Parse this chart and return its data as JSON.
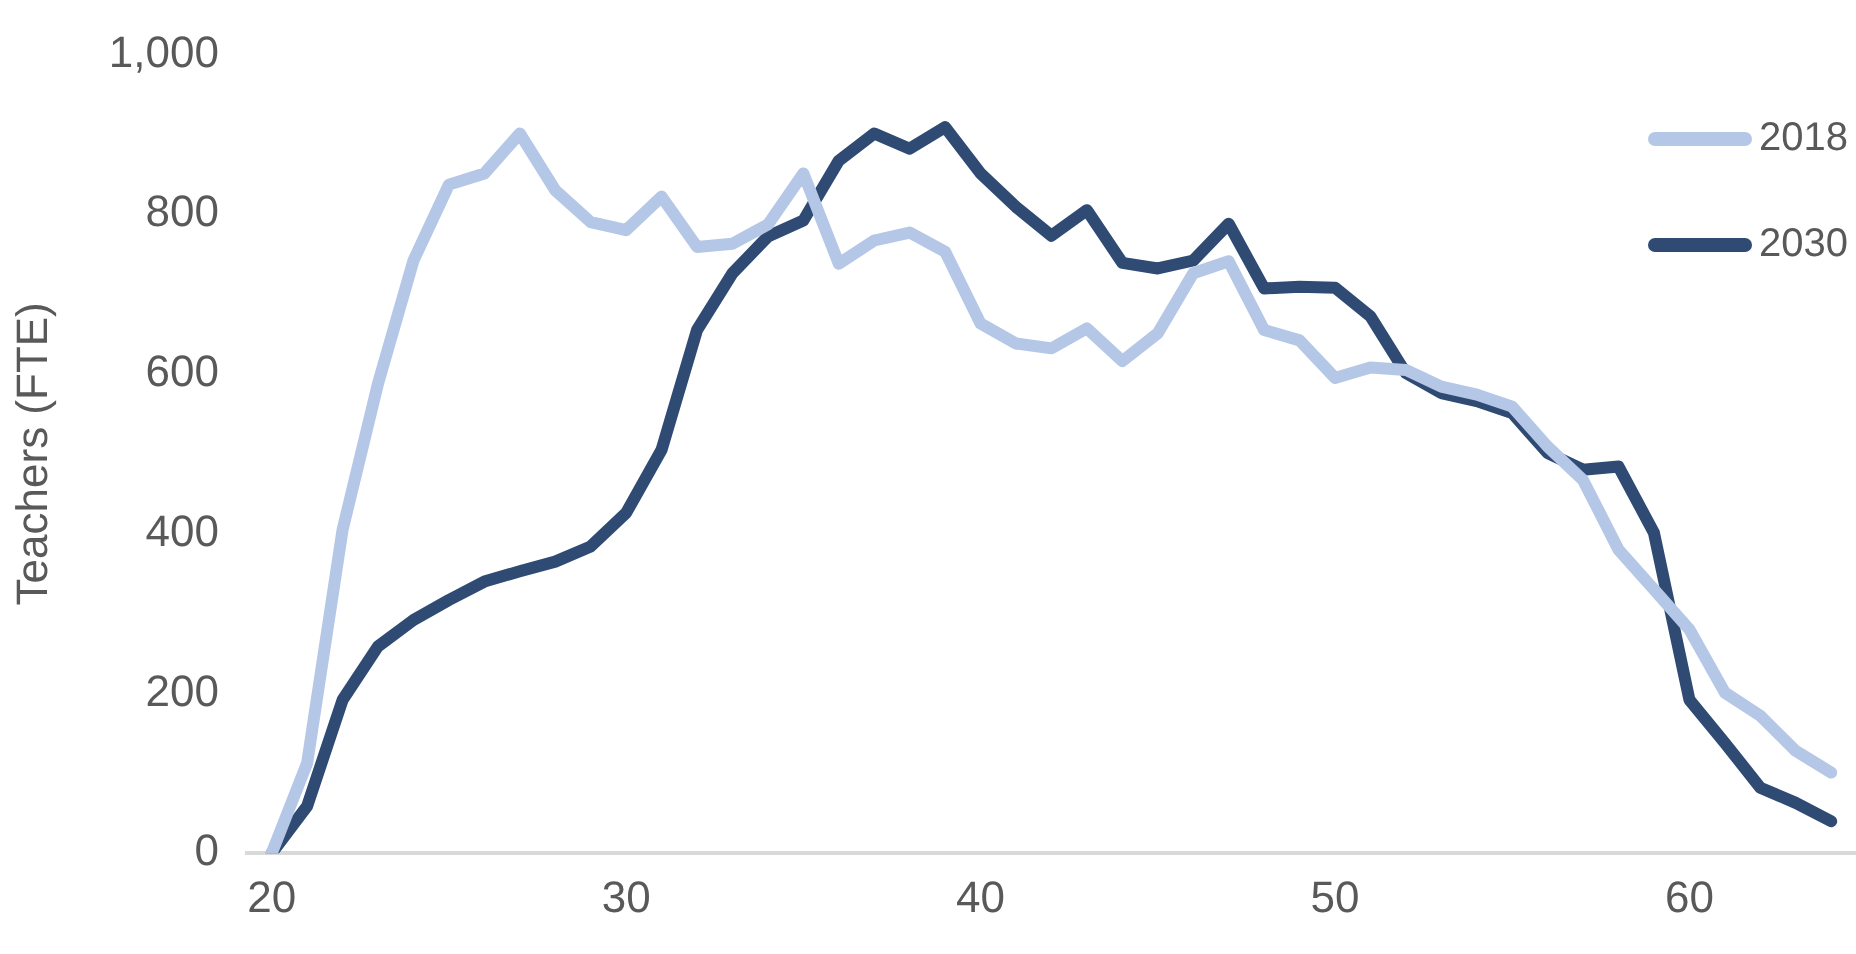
{
  "chart_data": {
    "type": "line",
    "ylabel": "Teachers (FTE)",
    "x": [
      20,
      21,
      22,
      23,
      24,
      25,
      26,
      27,
      28,
      29,
      30,
      31,
      32,
      33,
      34,
      35,
      36,
      37,
      38,
      39,
      40,
      41,
      42,
      43,
      44,
      45,
      46,
      47,
      48,
      49,
      50,
      51,
      52,
      53,
      54,
      55,
      56,
      57,
      58,
      59,
      60,
      61,
      62,
      63,
      64
    ],
    "series": [
      {
        "name": "2018",
        "color": "#b4c7e7",
        "values": [
          0,
          113,
          405,
          588,
          742,
          837,
          851,
          901,
          830,
          790,
          780,
          822,
          759,
          763,
          787,
          851,
          738,
          767,
          777,
          753,
          663,
          638,
          632,
          657,
          616,
          651,
          726,
          741,
          655,
          642,
          595,
          608,
          605,
          584,
          574,
          559,
          509,
          467,
          380,
          330,
          280,
          201,
          172,
          128,
          101
        ]
      },
      {
        "name": "2030",
        "color": "#2f4b73",
        "values": [
          0,
          59,
          192,
          259,
          292,
          317,
          340,
          353,
          365,
          384,
          426,
          505,
          655,
          726,
          772,
          792,
          867,
          901,
          882,
          909,
          851,
          809,
          773,
          805,
          739,
          732,
          742,
          788,
          707,
          709,
          708,
          672,
          601,
          576,
          566,
          551,
          501,
          480,
          484,
          401,
          192,
          138,
          82,
          63,
          40
        ]
      }
    ],
    "xlim": [
      19.3,
      64.7
    ],
    "xticks": [
      20,
      30,
      40,
      50,
      60
    ],
    "ylim": [
      0,
      1000
    ],
    "yticks": [
      0,
      200,
      400,
      600,
      800,
      {
        "value": 1000,
        "label": "1,000"
      }
    ],
    "grid": false,
    "legend": "top right",
    "marker": "none",
    "line_style": "solid"
  }
}
